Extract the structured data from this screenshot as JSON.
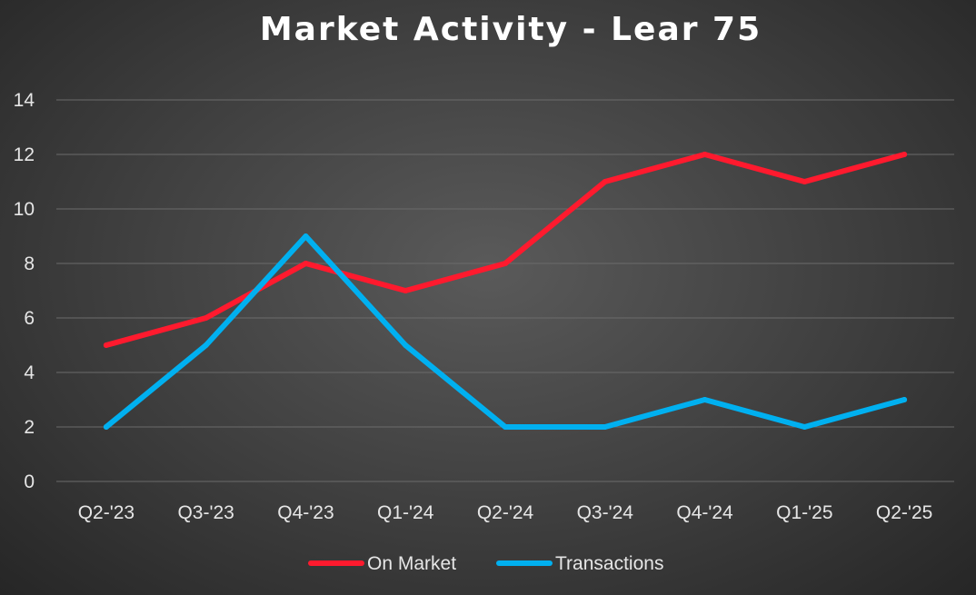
{
  "chart_data": {
    "type": "line",
    "title": "Market Activity - Lear 75",
    "xlabel": "",
    "ylabel": "",
    "categories": [
      "Q2-'23",
      "Q3-'23",
      "Q4-'23",
      "Q1-'24",
      "Q2-'24",
      "Q3-'24",
      "Q4-'24",
      "Q1-'25",
      "Q2-'25"
    ],
    "ylim": [
      0,
      14
    ],
    "yticks": [
      0,
      2,
      4,
      6,
      8,
      10,
      12,
      14
    ],
    "grid": true,
    "legend_position": "bottom",
    "series": [
      {
        "name": "On Market",
        "color": "#ff1a2e",
        "values": [
          5,
          6,
          8,
          7,
          8,
          11,
          12,
          11,
          12
        ]
      },
      {
        "name": "Transactions",
        "color": "#00b0f0",
        "values": [
          2,
          5,
          9,
          5,
          2,
          2,
          3,
          2,
          3
        ]
      }
    ]
  }
}
